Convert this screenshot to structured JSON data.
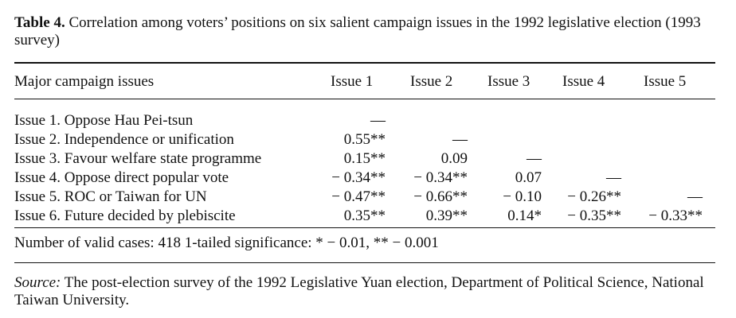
{
  "caption": {
    "label": "Table 4.",
    "text": " Correlation among voters’ positions on six salient campaign issues in the 1992 legislative election (1993 survey)"
  },
  "table": {
    "corner_header": "Major campaign issues",
    "columns": [
      "Issue 1",
      "Issue 2",
      "Issue 3",
      "Issue 4",
      "Issue 5"
    ],
    "rows": [
      {
        "label": "Issue 1. Oppose Hau Pei-tsun",
        "cells": [
          "—",
          "",
          "",
          "",
          ""
        ]
      },
      {
        "label": "Issue 2. Independence or unification",
        "cells": [
          "0.55**",
          "—",
          "",
          "",
          ""
        ]
      },
      {
        "label": "Issue 3. Favour welfare state programme",
        "cells": [
          "0.15**",
          "0.09",
          "—",
          "",
          ""
        ]
      },
      {
        "label": "Issue 4. Oppose direct popular vote",
        "cells": [
          "− 0.34**",
          "− 0.34**",
          "0.07",
          "—",
          ""
        ]
      },
      {
        "label": "Issue 5. ROC or Taiwan for UN",
        "cells": [
          "− 0.47**",
          "− 0.66**",
          "− 0.10",
          "− 0.26**",
          "—"
        ]
      },
      {
        "label": "Issue 6. Future decided by plebiscite",
        "cells": [
          "0.35**",
          "0.39**",
          "0.14*",
          "− 0.35**",
          "− 0.33**"
        ]
      }
    ],
    "note": "Number of valid cases: 418 1-tailed significance: * − 0.01, ** − 0.001"
  },
  "source": {
    "label": "Source:",
    "text": " The post-election survey of the 1992 Legislative Yuan election, Department of Political Science, National Taiwan University."
  }
}
